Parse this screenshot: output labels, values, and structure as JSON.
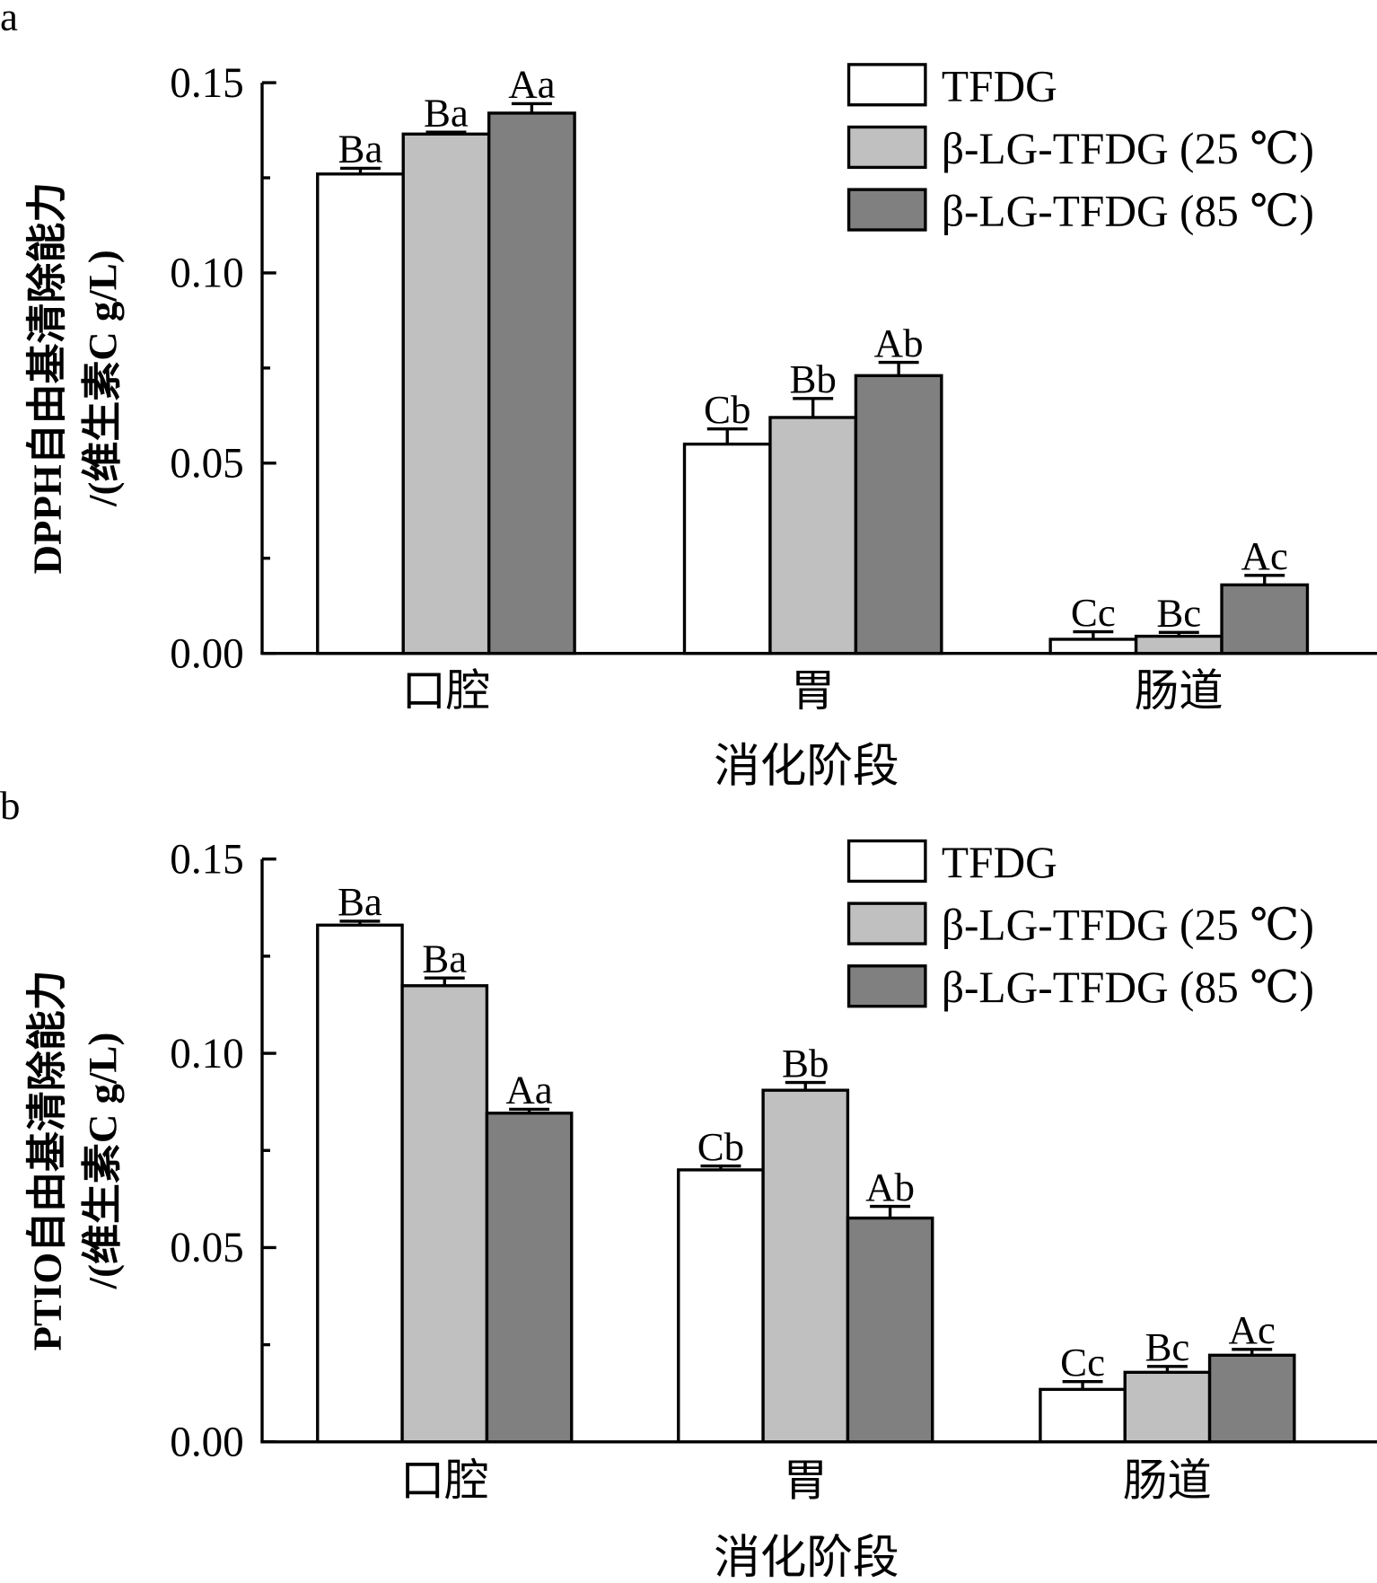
{
  "chart_data": [
    {
      "type": "bar",
      "panel_label": "a",
      "title": "",
      "xlabel": "消化阶段",
      "ylabel_line1": "DPPH自由基清除能力",
      "ylabel_line2": "/(维生素C g/L)",
      "ylim": [
        0,
        0.15
      ],
      "yticks": [
        "0.00",
        "0.05",
        "0.10",
        "0.15"
      ],
      "ytick_values": [
        0,
        0.05,
        0.1,
        0.15
      ],
      "grid": false,
      "legend_position": "top-right",
      "categories": [
        "口腔",
        "胃",
        "肠道"
      ],
      "series": [
        {
          "name": "TFDG",
          "color": "#ffffff",
          "values": [
            0.126,
            0.055,
            0.0037
          ],
          "errors": [
            0.0015,
            0.004,
            0.002
          ],
          "labels": [
            "Ba",
            "Cb",
            "Cc"
          ]
        },
        {
          "name": "β-LG-TFDG (25 ℃)",
          "color": "#c0c0c0",
          "values": [
            0.1365,
            0.062,
            0.0045
          ],
          "errors": [
            0.0005,
            0.005,
            0.001
          ],
          "labels": [
            "Ba",
            "Bb",
            "Bc"
          ]
        },
        {
          "name": "β-LG-TFDG (85 ℃)",
          "color": "#808080",
          "values": [
            0.142,
            0.073,
            0.018
          ],
          "errors": [
            0.0025,
            0.0035,
            0.0025
          ],
          "labels": [
            "Aa",
            "Ab",
            "Ac"
          ]
        }
      ]
    },
    {
      "type": "bar",
      "panel_label": "b",
      "title": "",
      "xlabel": "消化阶段",
      "ylabel_line1": "PTIO自由基清除能力",
      "ylabel_line2": "/(维生素C g/L)",
      "ylim": [
        0,
        0.15
      ],
      "yticks": [
        "0.00",
        "0.05",
        "0.10",
        "0.15"
      ],
      "ytick_values": [
        0,
        0.05,
        0.1,
        0.15
      ],
      "grid": false,
      "legend_position": "top-right",
      "categories": [
        "口腔",
        "胃",
        "肠道"
      ],
      "series": [
        {
          "name": "TFDG",
          "color": "#ffffff",
          "values": [
            0.133,
            0.07,
            0.0135
          ],
          "errors": [
            0.001,
            0.001,
            0.002
          ],
          "labels": [
            "Ba",
            "Cb",
            "Cc"
          ]
        },
        {
          "name": "β-LG-TFDG (25 ℃)",
          "color": "#c0c0c0",
          "values": [
            0.1174,
            0.0905,
            0.0179
          ],
          "errors": [
            0.002,
            0.002,
            0.0015
          ],
          "labels": [
            "Ba",
            "Bb",
            "Bc"
          ]
        },
        {
          "name": "β-LG-TFDG (85 ℃)",
          "color": "#808080",
          "values": [
            0.0846,
            0.0576,
            0.0223
          ],
          "errors": [
            0.001,
            0.003,
            0.0015
          ],
          "labels": [
            "Aa",
            "Ab",
            "Ac"
          ]
        }
      ]
    }
  ]
}
